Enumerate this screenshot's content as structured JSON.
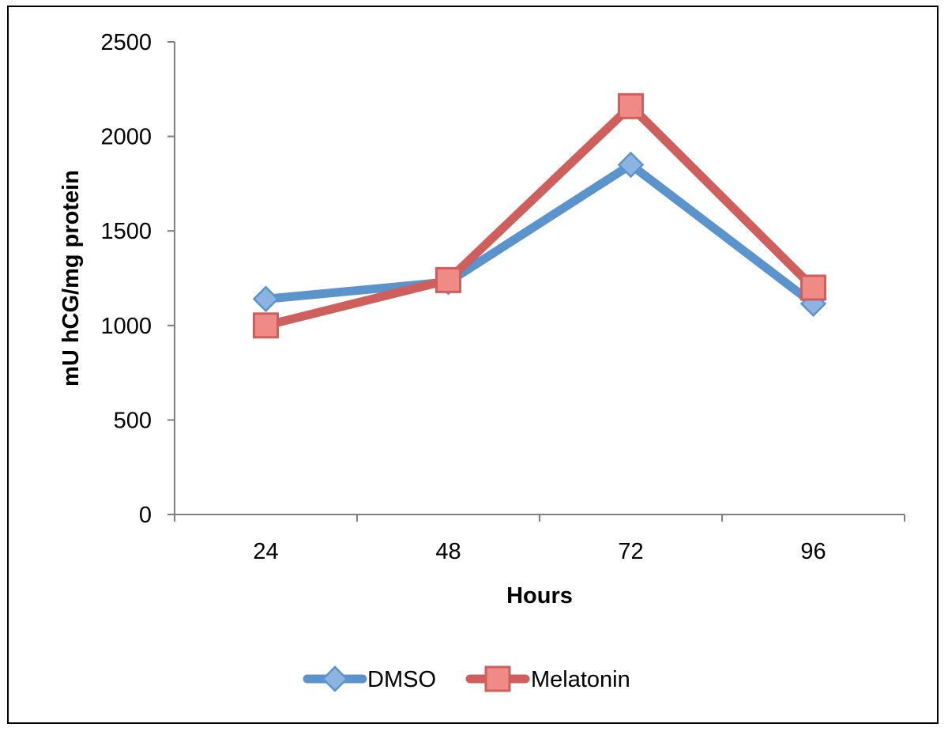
{
  "chart_data": {
    "type": "line",
    "title": "",
    "xlabel": "Hours",
    "ylabel": "mU hCG/mg protein",
    "categories": [
      "24",
      "48",
      "72",
      "96"
    ],
    "ylim": [
      0,
      2500
    ],
    "yticks": [
      0,
      500,
      1000,
      1500,
      2000,
      2500
    ],
    "ytick_labels": [
      "0",
      "500",
      "1000",
      "1500",
      "2000",
      "2500"
    ],
    "grid": false,
    "legend_position": "bottom",
    "series": [
      {
        "name": "DMSO",
        "values": [
          1140,
          1230,
          1850,
          1115
        ],
        "color": "#5B93CD",
        "marker": "diamond",
        "marker_fill": "#8DB3E2"
      },
      {
        "name": "Melatonin",
        "values": [
          1000,
          1240,
          2160,
          1200
        ],
        "color": "#CF5F5D",
        "marker": "square",
        "marker_fill": "#F08A87"
      }
    ]
  }
}
